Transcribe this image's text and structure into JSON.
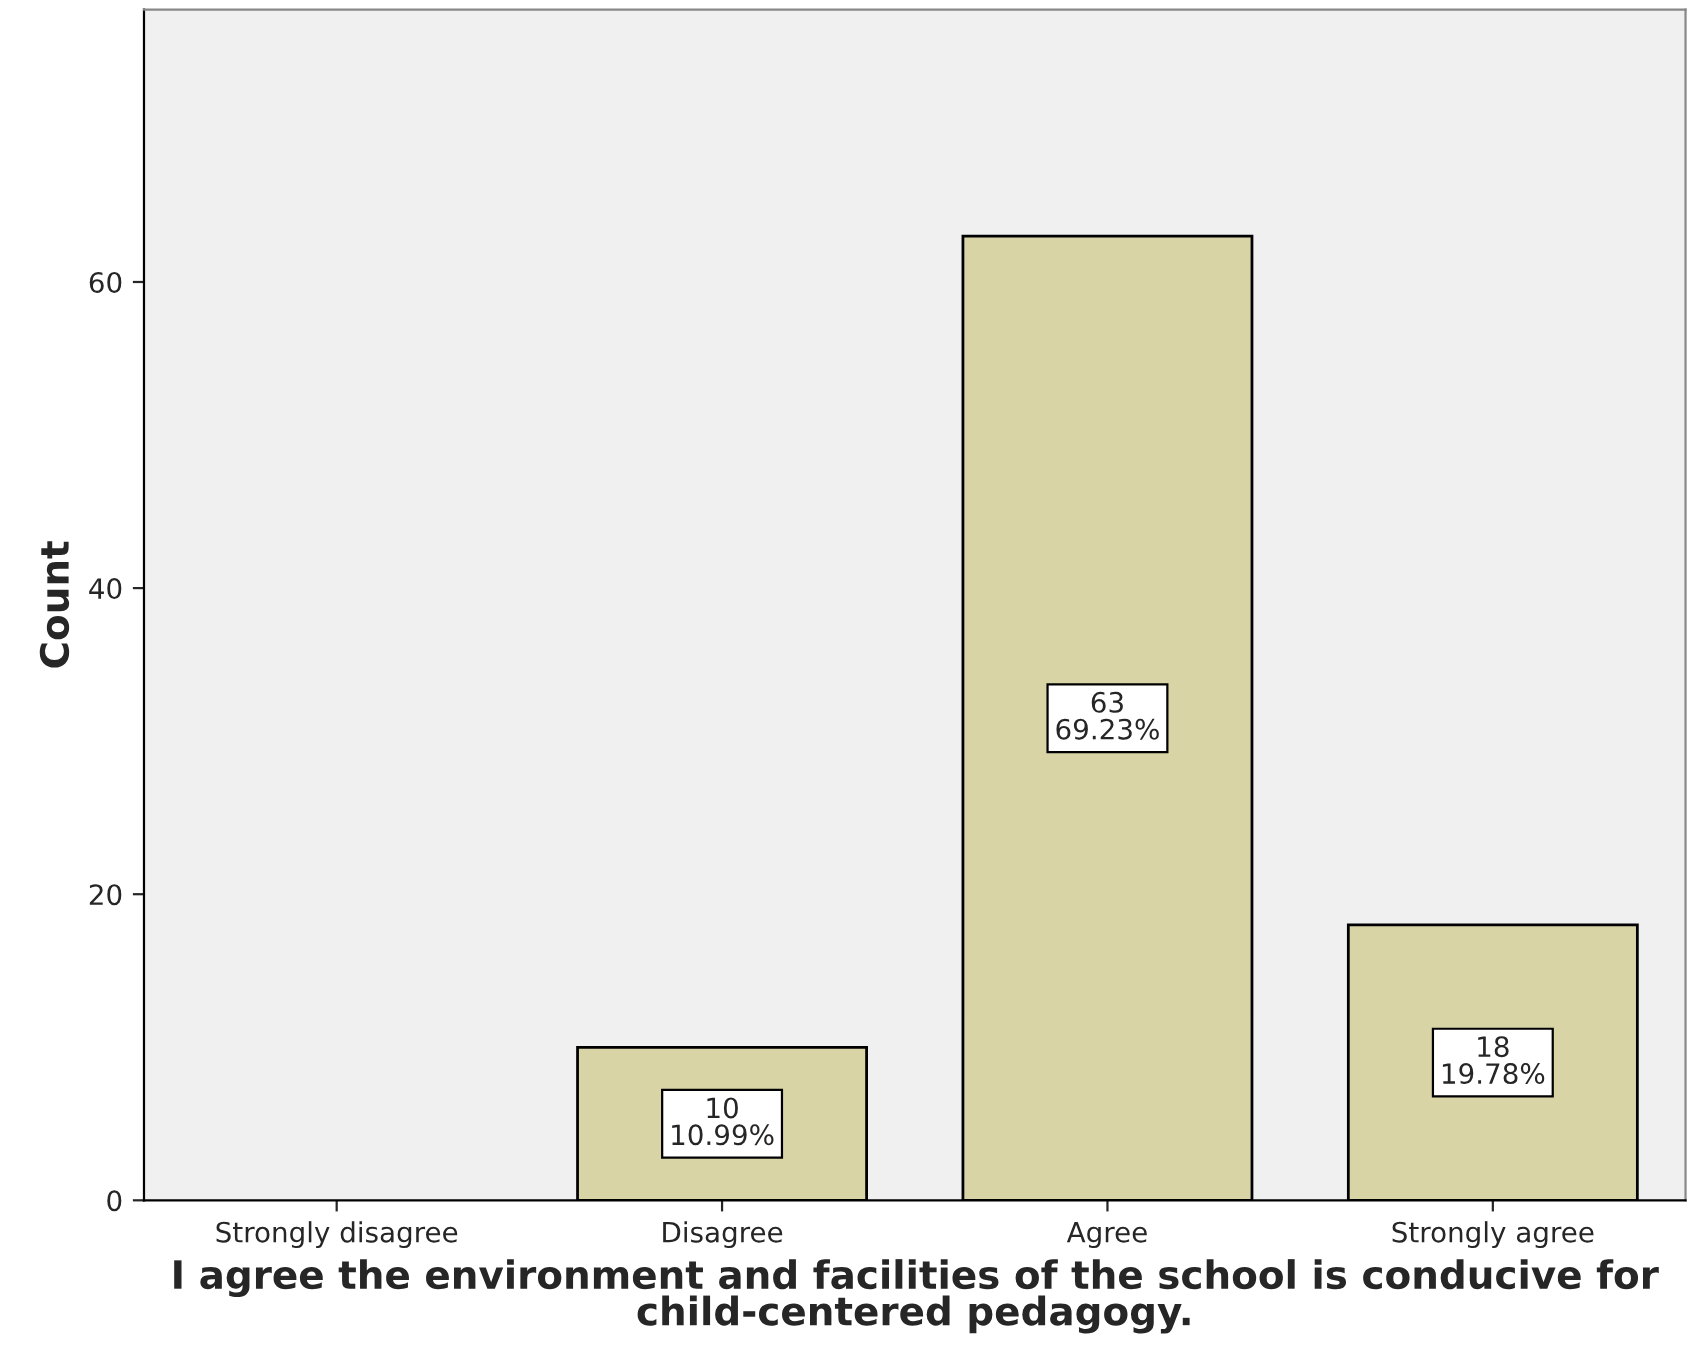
{
  "chart_data": {
    "type": "bar",
    "xlabel": "I agree the environment and facilities of the school is conducive for child-centered pedagogy.",
    "ylabel": "Count",
    "categories": [
      "Strongly disagree",
      "Disagree",
      "Agree",
      "Strongly agree"
    ],
    "values": [
      null,
      10,
      63,
      18
    ],
    "value_labels": [
      null,
      "10\n10.99%",
      "63\n69.23%",
      "18\n19.78%"
    ],
    "color": "#d9d4a6",
    "ylim": [
      0,
      77.8
    ],
    "yticks": [
      0,
      20,
      40,
      60
    ],
    "grid": false
  }
}
